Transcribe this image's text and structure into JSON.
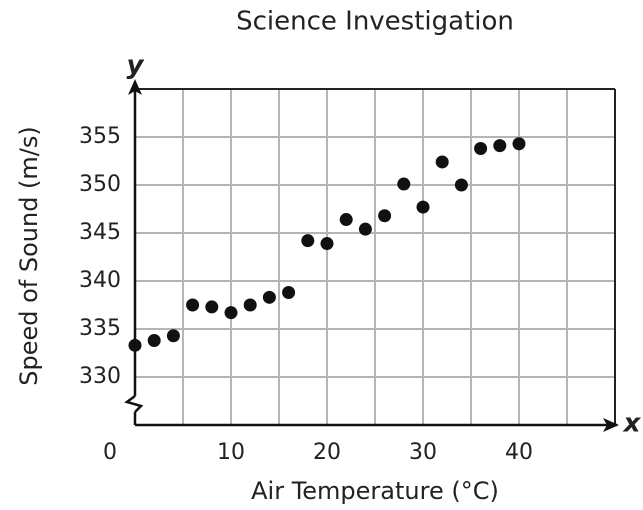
{
  "chart_data": {
    "type": "scatter",
    "title": "Science Investigation",
    "x_label": "Air Temperature (°C)",
    "y_label": "Speed of Sound (m/s)",
    "x_axis_letter": "x",
    "y_axis_letter": "y",
    "x": [
      0,
      2,
      4,
      6,
      8,
      10,
      12,
      14,
      16,
      18,
      20,
      22,
      24,
      26,
      28,
      30,
      32,
      34,
      36,
      38,
      40
    ],
    "values": [
      333.3,
      333.8,
      334.3,
      337.5,
      337.3,
      336.7,
      337.5,
      338.3,
      338.8,
      344.2,
      343.9,
      346.4,
      345.4,
      346.8,
      350.1,
      347.7,
      352.4,
      350.0,
      353.8,
      354.1,
      354.3
    ],
    "color": "#111111",
    "xlim": [
      0,
      50
    ],
    "xticks": [
      0,
      10,
      20,
      30,
      40
    ],
    "ylim": [
      325,
      360
    ],
    "yticks": [
      330,
      335,
      340,
      345,
      350,
      355
    ],
    "grid": true
  }
}
